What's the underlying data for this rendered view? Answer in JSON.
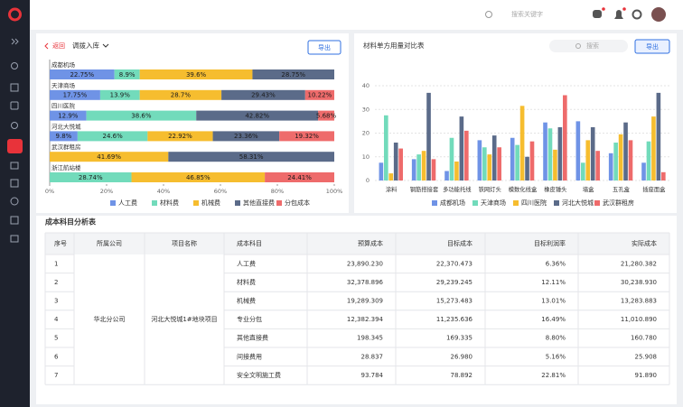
{
  "header": {
    "search_placeholder": "搜索关键字"
  },
  "left_panel": {
    "back": "返回",
    "selector": "调拨入库",
    "export": "导出"
  },
  "right_panel": {
    "search_placeholder": "搜索",
    "export": "导出"
  },
  "chart_data": [
    {
      "type": "barh",
      "stacked": true,
      "categories": [
        "成都机场",
        "天津商场",
        "四川医院",
        "河北大悦城",
        "武汉群租房",
        "浙江航站楼"
      ],
      "series": [
        {
          "name": "人工费",
          "color": "#6f93e6",
          "values": [
            22.75,
            17.75,
            12.9,
            9.8,
            null,
            null
          ],
          "value_labels": [
            "22.75%",
            "17.75%",
            "12.9%",
            "9.8%",
            null,
            null
          ]
        },
        {
          "name": "材料费",
          "color": "#72dbbb",
          "values": [
            8.9,
            13.9,
            38.6,
            24.6,
            null,
            28.74
          ],
          "value_labels": [
            "8.9%",
            "13.9%",
            "38.6%",
            "24.6%",
            null,
            "28.74%"
          ]
        },
        {
          "name": "机械费",
          "color": "#f6bd2f",
          "values": [
            39.6,
            28.7,
            null,
            22.92,
            41.69,
            46.85
          ],
          "value_labels": [
            "39.6%",
            "28.7%",
            null,
            "22.92%",
            "41.69%",
            "46.85%"
          ]
        },
        {
          "name": "其他直接费",
          "color": "#5b6b89",
          "values": [
            28.75,
            29.43,
            42.82,
            23.36,
            58.31,
            null
          ],
          "value_labels": [
            "28.75%",
            "29.43%",
            "42.82%",
            "23.36%",
            "58.31%",
            null
          ]
        },
        {
          "name": "分包成本",
          "color": "#ee6b6b",
          "values": [
            null,
            10.22,
            5.68,
            19.32,
            null,
            24.41
          ],
          "value_labels": [
            null,
            "10.22%",
            "5.68%",
            "19.32%",
            null,
            "24.41%"
          ]
        }
      ],
      "xlim": [
        0,
        100
      ],
      "xticks": [
        {
          "value": 0,
          "label": "0%"
        },
        {
          "value": 20,
          "label": "20%"
        },
        {
          "value": 40,
          "label": "40%"
        },
        {
          "value": 60,
          "label": "60%"
        },
        {
          "value": 80,
          "label": "80%"
        },
        {
          "value": 100,
          "label": "100%"
        }
      ],
      "grid": false,
      "legend": "bottom"
    },
    {
      "type": "bar",
      "title": "材料单方用量对比表",
      "categories": [
        "涂料",
        "钢筋搭接套",
        "多功能托线",
        "铁网灯头",
        "模数化线盒",
        "橡皮锤头",
        "墙盒",
        "五孔盒",
        "插座面盒"
      ],
      "series": [
        {
          "name": "成都机场",
          "color": "#6f93e6",
          "values": [
            7.5,
            9,
            4,
            17,
            18,
            24.5,
            25,
            11.5,
            7.5
          ]
        },
        {
          "name": "天津商场",
          "color": "#72dbbb",
          "values": [
            27.5,
            11,
            18,
            14,
            15,
            22,
            7.5,
            16,
            16.5
          ]
        },
        {
          "name": "四川医院",
          "color": "#f6bd2f",
          "values": [
            3,
            12.5,
            8,
            11,
            31.5,
            13,
            17,
            19.5,
            27
          ]
        },
        {
          "name": "河北大悦城",
          "color": "#5b6b89",
          "values": [
            16,
            37,
            27,
            19,
            10,
            22.5,
            22.5,
            24.5,
            37
          ]
        },
        {
          "name": "武汉群租房",
          "color": "#ee6b6b",
          "values": [
            13.5,
            9,
            21,
            14,
            16.5,
            36,
            12.5,
            17,
            3.5
          ]
        }
      ],
      "ylim": [
        0,
        40
      ],
      "yticks": [
        0,
        10,
        20,
        30,
        40
      ],
      "grid": true,
      "legend": "bottom"
    }
  ],
  "table": {
    "title": "成本科目分析表",
    "columns": [
      "序号",
      "所属公司",
      "项目名称",
      "成本科目",
      "预算成本",
      "目标成本",
      "目标利润率",
      "实际成本"
    ],
    "company": "华北分公司",
    "project": "河北大悦城1#地块项目",
    "rows": [
      [
        "1",
        "人工费",
        "23,890.230",
        "22,370.473",
        "6.36%",
        "21,280.382"
      ],
      [
        "2",
        "材料费",
        "32,378.896",
        "29,239.245",
        "12.11%",
        "30,238.930"
      ],
      [
        "3",
        "机械费",
        "19,289.309",
        "15,273.483",
        "13.01%",
        "13,283.883"
      ],
      [
        "4",
        "专业分包",
        "12,382.394",
        "11,235.636",
        "16.49%",
        "11,010.890"
      ],
      [
        "5",
        "其他直接费",
        "198.345",
        "169.335",
        "8.80%",
        "160.780"
      ],
      [
        "6",
        "间接费用",
        "28.837",
        "26.980",
        "5.16%",
        "25.908"
      ],
      [
        "7",
        "安全文明施工费",
        "93.784",
        "78.892",
        "22.81%",
        "91.890"
      ]
    ]
  }
}
